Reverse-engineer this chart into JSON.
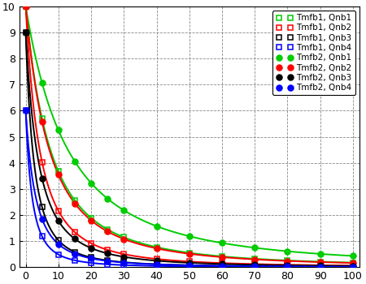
{
  "xlim": [
    -2,
    102
  ],
  "ylim": [
    0,
    10
  ],
  "xticks": [
    0,
    10,
    20,
    30,
    40,
    50,
    60,
    70,
    80,
    90,
    100
  ],
  "yticks": [
    0,
    1,
    2,
    3,
    4,
    5,
    6,
    7,
    8,
    9,
    10
  ],
  "series": [
    {
      "label": "Tmfb1, Qnb1",
      "color": "#00cc00",
      "marker": "s",
      "filled": false,
      "y0": 10.0,
      "k": 0.065,
      "n": 2.0
    },
    {
      "label": "Tmfb1, Qnb2",
      "color": "#ff0000",
      "marker": "s",
      "filled": false,
      "y0": 10.0,
      "k": 0.115,
      "n": 2.0
    },
    {
      "label": "Tmfb1, Qnb3",
      "color": "#000000",
      "marker": "s",
      "filled": false,
      "y0": 9.0,
      "k": 0.195,
      "n": 2.0
    },
    {
      "label": "Tmfb1, Qnb4",
      "color": "#0000ff",
      "marker": "s",
      "filled": false,
      "y0": 6.0,
      "k": 0.25,
      "n": 2.0
    },
    {
      "label": "Tmfb2, Qnb1",
      "color": "#00cc00",
      "marker": "o",
      "filled": true,
      "y0": 10.0,
      "k": 0.038,
      "n": 2.0
    },
    {
      "label": "Tmfb2, Qnb2",
      "color": "#ff0000",
      "marker": "o",
      "filled": true,
      "y0": 10.0,
      "k": 0.068,
      "n": 2.0
    },
    {
      "label": "Tmfb2, Qnb3",
      "color": "#000000",
      "marker": "o",
      "filled": true,
      "y0": 9.0,
      "k": 0.125,
      "n": 2.0
    },
    {
      "label": "Tmfb2, Qnb4",
      "color": "#0000ff",
      "marker": "o",
      "filled": true,
      "y0": 6.0,
      "k": 0.16,
      "n": 2.0
    }
  ],
  "marker_x": [
    0,
    5,
    10,
    15,
    20,
    25,
    30,
    40,
    50,
    60,
    70,
    80,
    90,
    100
  ],
  "bg_color": "#ffffff",
  "grid_color": "#888888",
  "legend_fontsize": 7.5,
  "tick_fontsize": 9,
  "linewidth": 1.4,
  "markersize": 5,
  "figsize": [
    4.5,
    3.5
  ],
  "dpi": 100
}
